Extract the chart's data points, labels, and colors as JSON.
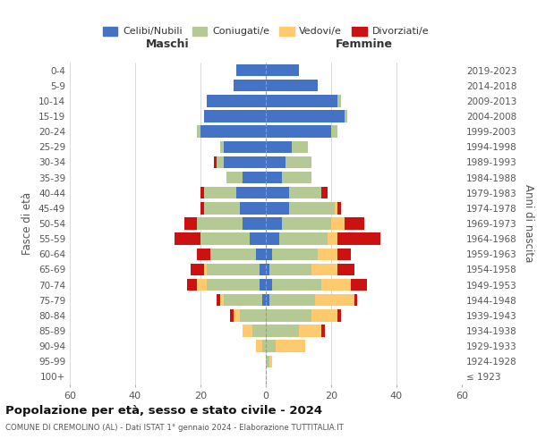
{
  "age_groups": [
    "100+",
    "95-99",
    "90-94",
    "85-89",
    "80-84",
    "75-79",
    "70-74",
    "65-69",
    "60-64",
    "55-59",
    "50-54",
    "45-49",
    "40-44",
    "35-39",
    "30-34",
    "25-29",
    "20-24",
    "15-19",
    "10-14",
    "5-9",
    "0-4"
  ],
  "birth_years": [
    "≤ 1923",
    "1924-1928",
    "1929-1933",
    "1934-1938",
    "1939-1943",
    "1944-1948",
    "1949-1953",
    "1954-1958",
    "1959-1963",
    "1964-1968",
    "1969-1973",
    "1974-1978",
    "1979-1983",
    "1984-1988",
    "1989-1993",
    "1994-1998",
    "1999-2003",
    "2004-2008",
    "2009-2013",
    "2014-2018",
    "2019-2023"
  ],
  "maschi": {
    "celibi": [
      0,
      0,
      0,
      0,
      0,
      1,
      2,
      2,
      3,
      5,
      7,
      8,
      9,
      7,
      13,
      13,
      20,
      19,
      18,
      10,
      9
    ],
    "coniugati": [
      0,
      0,
      1,
      4,
      8,
      12,
      16,
      16,
      14,
      15,
      14,
      11,
      10,
      5,
      2,
      1,
      1,
      0,
      0,
      0,
      0
    ],
    "vedovi": [
      0,
      0,
      2,
      3,
      2,
      1,
      3,
      1,
      0,
      0,
      0,
      0,
      0,
      0,
      0,
      0,
      0,
      0,
      0,
      0,
      0
    ],
    "divorziati": [
      0,
      0,
      0,
      0,
      1,
      1,
      3,
      4,
      4,
      8,
      4,
      1,
      1,
      0,
      1,
      0,
      0,
      0,
      0,
      0,
      0
    ]
  },
  "femmine": {
    "celibi": [
      0,
      0,
      0,
      0,
      0,
      1,
      2,
      1,
      2,
      4,
      5,
      7,
      7,
      5,
      6,
      8,
      20,
      24,
      22,
      16,
      10
    ],
    "coniugati": [
      0,
      1,
      3,
      10,
      14,
      14,
      15,
      13,
      14,
      15,
      15,
      14,
      10,
      9,
      8,
      5,
      2,
      1,
      1,
      0,
      0
    ],
    "vedovi": [
      0,
      1,
      9,
      7,
      8,
      12,
      9,
      8,
      6,
      3,
      4,
      1,
      0,
      0,
      0,
      0,
      0,
      0,
      0,
      0,
      0
    ],
    "divorziati": [
      0,
      0,
      0,
      1,
      1,
      1,
      5,
      5,
      4,
      13,
      6,
      1,
      2,
      0,
      0,
      0,
      0,
      0,
      0,
      0,
      0
    ]
  },
  "colors": {
    "celibi": "#4472c4",
    "coniugati": "#b5c994",
    "vedovi": "#ffc96e",
    "divorziati": "#cc1111"
  },
  "xlim": 60,
  "title": "Popolazione per età, sesso e stato civile - 2024",
  "subtitle": "COMUNE DI CREMOLINO (AL) - Dati ISTAT 1° gennaio 2024 - Elaborazione TUTTITALIA.IT",
  "ylabel_left": "Fasce di età",
  "ylabel_right": "Anni di nascita",
  "xlabel_left": "Maschi",
  "xlabel_right": "Femmine",
  "legend_labels": [
    "Celibi/Nubili",
    "Coniugati/e",
    "Vedovi/e",
    "Divorziati/e"
  ],
  "background_color": "#ffffff",
  "grid_color": "#cccccc"
}
